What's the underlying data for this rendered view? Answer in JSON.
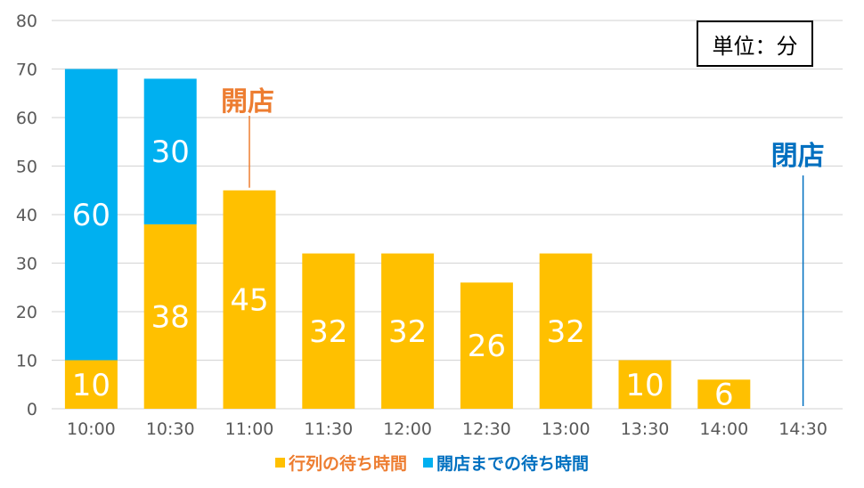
{
  "chart_data": {
    "type": "bar",
    "stacked": true,
    "categories": [
      "10:00",
      "10:30",
      "11:00",
      "11:30",
      "12:00",
      "12:30",
      "13:00",
      "13:30",
      "14:00",
      "14:30"
    ],
    "series": [
      {
        "name": "行列の待ち時間",
        "values": [
          10,
          38,
          45,
          32,
          32,
          26,
          32,
          10,
          6,
          0
        ],
        "color": "#FFC000"
      },
      {
        "name": "開店までの待ち時間",
        "values": [
          60,
          30,
          0,
          0,
          0,
          0,
          0,
          0,
          0,
          0
        ],
        "color": "#00B0F0"
      }
    ],
    "ylim": [
      0,
      80
    ],
    "yticks": [
      0,
      10,
      20,
      30,
      40,
      50,
      60,
      70,
      80
    ],
    "grid": true,
    "legend_position": "bottom",
    "unit_label": "単位：分",
    "annotations": [
      {
        "text": "開店",
        "category": "11:00",
        "color": "#ED7D31"
      },
      {
        "text": "閉店",
        "category": "14:30",
        "color": "#0070C0"
      }
    ]
  }
}
